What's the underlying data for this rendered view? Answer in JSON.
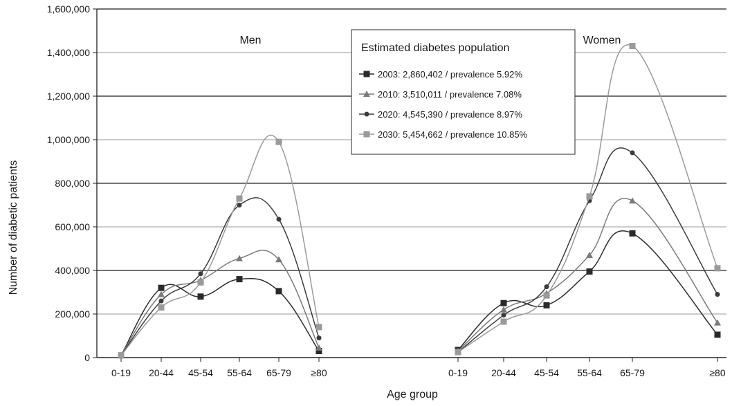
{
  "chart_data": {
    "type": "line",
    "ylabel": "Number of diabetic patients",
    "xlabel": "Age group",
    "ylim": [
      0,
      1600000
    ],
    "y_ticks": [
      "0",
      "200,000",
      "400,000",
      "600,000",
      "800,000",
      "1,000,000",
      "1,200,000",
      "1,400,000",
      "1,600,000"
    ],
    "grid": "horizontal",
    "categories": [
      "0-19",
      "20-44",
      "45-54",
      "55-64",
      "65-79",
      "≥80"
    ],
    "legend": {
      "title": "Estimated diabetes population",
      "placement": "top-center",
      "entries": [
        "2003: 2,860,402 / prevalence 5.92%",
        "2010: 3,510,011 / prevalence 7.08%",
        "2020: 4,545,390 / prevalence 8.97%",
        "2030: 5,454,662 / prevalence 10.85%"
      ]
    },
    "panels": [
      {
        "title": "Men",
        "series": [
          {
            "name": "2003",
            "values": [
              10000,
              320000,
              280000,
              360000,
              305000,
              30000
            ]
          },
          {
            "name": "2010",
            "values": [
              10000,
              290000,
              355000,
              455000,
              450000,
              45000
            ]
          },
          {
            "name": "2020",
            "values": [
              10000,
              260000,
              385000,
              700000,
              635000,
              90000
            ]
          },
          {
            "name": "2030",
            "values": [
              10000,
              230000,
              345000,
              730000,
              990000,
              140000
            ]
          }
        ]
      },
      {
        "title": "Women",
        "series": [
          {
            "name": "2003",
            "values": [
              35000,
              250000,
              240000,
              395000,
              570000,
              105000
            ]
          },
          {
            "name": "2010",
            "values": [
              30000,
              220000,
              295000,
              470000,
              720000,
              160000
            ]
          },
          {
            "name": "2020",
            "values": [
              25000,
              195000,
              325000,
              720000,
              940000,
              290000
            ]
          },
          {
            "name": "2030",
            "values": [
              25000,
              165000,
              285000,
              740000,
              1430000,
              410000
            ]
          }
        ]
      }
    ],
    "series_styles": [
      {
        "color": "#2a2a2a",
        "marker": "square"
      },
      {
        "color": "#7a7a7a",
        "marker": "triangle"
      },
      {
        "color": "#3c3c3c",
        "marker": "circle"
      },
      {
        "color": "#9a9a9a",
        "marker": "square"
      }
    ]
  }
}
